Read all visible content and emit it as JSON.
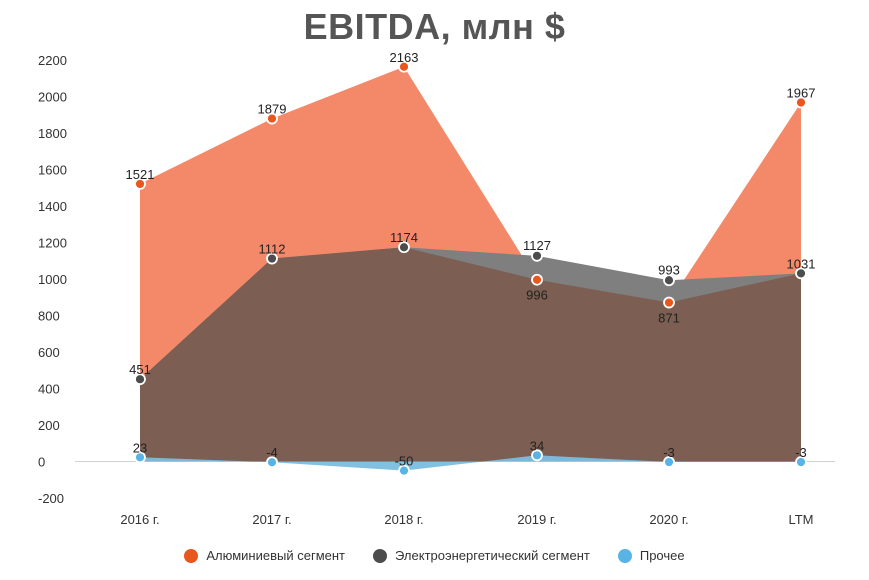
{
  "chart_data": {
    "type": "area",
    "title": "EBITDA, млн $",
    "categories": [
      "2016 г.",
      "2017 г.",
      "2018 г.",
      "2019 г.",
      "2020 г.",
      "LTM"
    ],
    "ylim": [
      -200,
      2200
    ],
    "yticks": [
      -200,
      0,
      200,
      400,
      600,
      800,
      1000,
      1200,
      1400,
      1600,
      1800,
      2000,
      2200
    ],
    "grid": false,
    "legend_position": "bottom",
    "series": [
      {
        "name": "Алюминиевый сегмент",
        "values": [
          1521,
          1879,
          2163,
          996,
          871,
          1967
        ],
        "color": "#f4896a",
        "marker": "#e8571f"
      },
      {
        "name": "Электроэнергетический сегмент",
        "values": [
          451,
          1112,
          1174,
          1127,
          993,
          1031
        ],
        "color": "#7c5e52",
        "overlap_color": "#7f7f7f",
        "marker": "#4d4d4d"
      },
      {
        "name": "Прочее",
        "values": [
          23,
          -4,
          -50,
          34,
          -3,
          -3
        ],
        "color": "#7bbde0",
        "marker": "#59b4e6"
      }
    ]
  }
}
